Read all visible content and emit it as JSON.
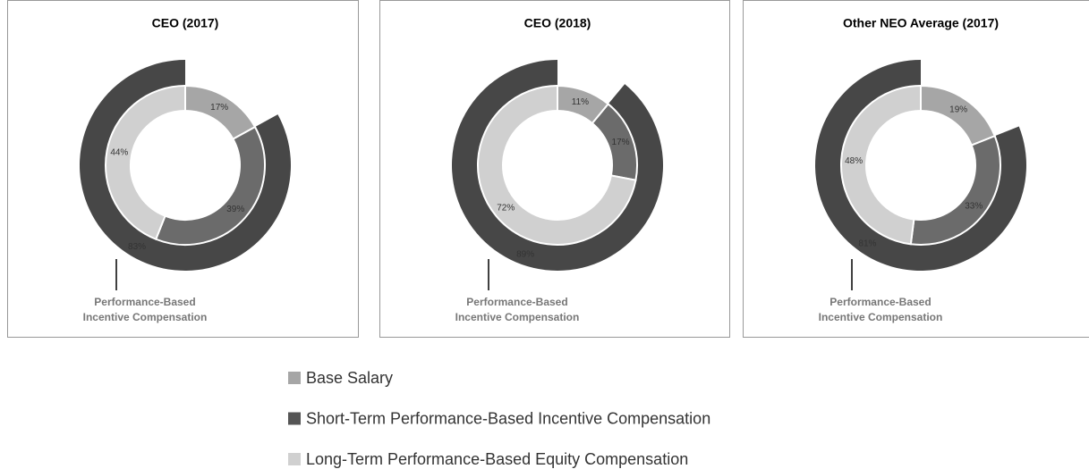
{
  "chart_data": [
    {
      "type": "donut",
      "title": "CEO (2017)",
      "values": [
        17,
        39,
        44
      ],
      "value_labels": [
        "17%",
        "39%",
        "44%"
      ],
      "outer_value": 83,
      "outer_label": "83%",
      "annotation": [
        "Performance-Based",
        "Incentive Compensation"
      ]
    },
    {
      "type": "donut",
      "title": "CEO (2018)",
      "values": [
        11,
        17,
        72
      ],
      "value_labels": [
        "11%",
        "17%",
        "72%"
      ],
      "outer_value": 89,
      "outer_label": "89%",
      "annotation": [
        "Performance-Based",
        "Incentive Compensation"
      ]
    },
    {
      "type": "donut",
      "title": "Other NEO Average (2017)",
      "values": [
        19,
        33,
        48
      ],
      "value_labels": [
        "19%",
        "33%",
        "48%"
      ],
      "outer_value": 81,
      "outer_label": "81%",
      "annotation": [
        "Performance-Based",
        "Incentive Compensation"
      ]
    }
  ],
  "legend": {
    "names": [
      "Base Salary",
      "Short-Term Performance-Based Incentive Compensation",
      "Long-Term Performance-Based Equity Compensation"
    ],
    "colors": [
      "#a6a6a6",
      "#6b6b6b",
      "#d0d0d0"
    ],
    "legend_colors": [
      "#a6a6a6",
      "#555555",
      "#d0d0d0"
    ],
    "outer_color": "#474747"
  }
}
